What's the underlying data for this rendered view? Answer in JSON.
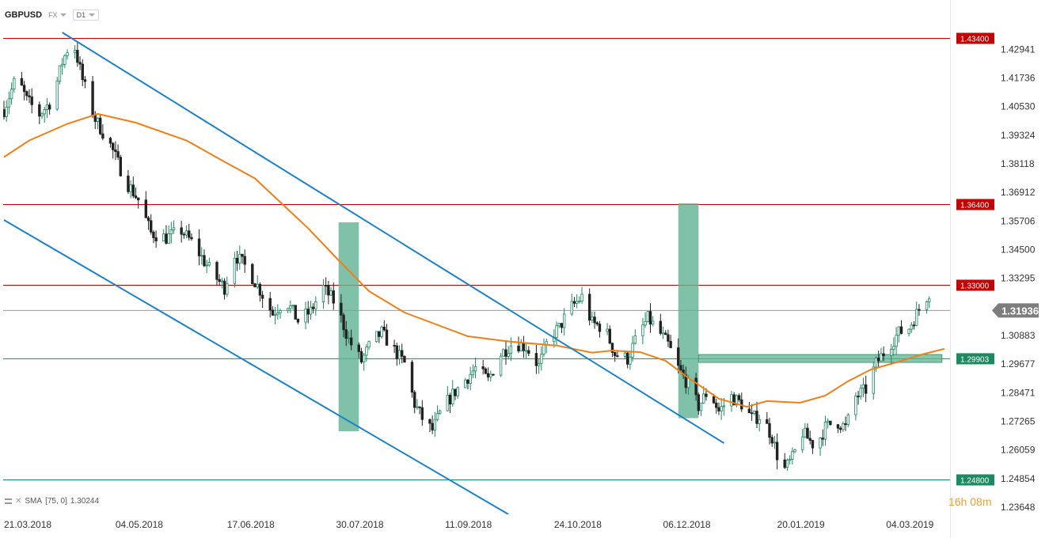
{
  "toolbar": {
    "symbol": "GBPUSD",
    "market": "FX",
    "timeframe": "D1"
  },
  "indicator": {
    "name": "SMA",
    "params": "[75, 0]",
    "value": "1.30244"
  },
  "timer": {
    "hours": "16",
    "h": "h",
    "minutes": "08",
    "m": "m"
  },
  "colors": {
    "up": "#1b8a60",
    "down": "#222222",
    "sma": "#f07f18",
    "channel": "#1b82c9",
    "resistance": "#c40000",
    "support": "#1b8a60",
    "zone": "#5fb394"
  },
  "chart_data": {
    "type": "candlestick",
    "instrument": "GBPUSD",
    "timeframe": "D1",
    "ylim": [
      1.2335,
      1.4385
    ],
    "y_ticks": [
      "1.42941",
      "1.41736",
      "1.40530",
      "1.39324",
      "1.38118",
      "1.36912",
      "1.35706",
      "1.34500",
      "1.33295",
      "1.30883",
      "1.29677",
      "1.28471",
      "1.27265",
      "1.26059",
      "1.24854",
      "1.23648"
    ],
    "x_ticks": [
      "21.03.2018",
      "04.05.2018",
      "17.06.2018",
      "30.07.2018",
      "11.09.2018",
      "24.10.2018",
      "06.12.2018",
      "20.01.2019",
      "04.03.2019"
    ],
    "x_tick_dates": [
      "2018-03-21",
      "2018-05-04",
      "2018-06-17",
      "2018-07-30",
      "2018-09-11",
      "2018-10-24",
      "2018-12-06",
      "2019-01-20",
      "2019-03-04"
    ],
    "price_tag": {
      "value": "1.31936",
      "level": 1.31936
    },
    "levels": [
      {
        "label": "1.43400",
        "value": 1.434,
        "kind": "resistance"
      },
      {
        "label": "1.36400",
        "value": 1.364,
        "kind": "resistance"
      },
      {
        "label": "1.33000",
        "value": 1.33,
        "kind": "resistance"
      },
      {
        "label": "1.29903",
        "value": 1.29903,
        "kind": "support"
      },
      {
        "label": "1.24800",
        "value": 1.248,
        "kind": "support"
      }
    ],
    "support_zone": {
      "from": "2018-12-20",
      "to": "2019-03-26",
      "low": 1.2975,
      "high": 1.3008
    },
    "boxes": [
      {
        "from": "2018-07-31",
        "to": "2018-08-08",
        "low": 1.2685,
        "high": 1.3565
      },
      {
        "from": "2018-12-12",
        "to": "2018-12-20",
        "low": 1.274,
        "high": 1.3645
      }
    ],
    "channel_lines": [
      {
        "points": [
          [
            "2018-04-13",
            1.4365
          ],
          [
            "2018-12-30",
            1.2635
          ]
        ]
      },
      {
        "points": [
          [
            "2018-03-21",
            1.3575
          ],
          [
            "2018-10-06",
            1.2335
          ]
        ]
      }
    ],
    "sma": {
      "name": "SMA",
      "period": 75,
      "points": [
        [
          "2018-03-21",
          1.384
        ],
        [
          "2018-03-31",
          1.391
        ],
        [
          "2018-04-15",
          1.398
        ],
        [
          "2018-04-27",
          1.4022
        ],
        [
          "2018-05-12",
          1.3985
        ],
        [
          "2018-06-01",
          1.391
        ],
        [
          "2018-06-16",
          1.382
        ],
        [
          "2018-06-28",
          1.375
        ],
        [
          "2018-07-08",
          1.365
        ],
        [
          "2018-07-19",
          1.354
        ],
        [
          "2018-07-31",
          1.3405
        ],
        [
          "2018-08-12",
          1.3275
        ],
        [
          "2018-08-26",
          1.3185
        ],
        [
          "2018-09-10",
          1.3125
        ],
        [
          "2018-09-20",
          1.3085
        ],
        [
          "2018-10-07",
          1.3062
        ],
        [
          "2018-10-25",
          1.3046
        ],
        [
          "2018-11-08",
          1.3016
        ],
        [
          "2018-11-16",
          1.3025
        ],
        [
          "2018-11-27",
          1.3018
        ],
        [
          "2018-12-07",
          1.2982
        ],
        [
          "2018-12-16",
          1.291
        ],
        [
          "2018-12-28",
          1.2822
        ],
        [
          "2019-01-08",
          1.2788
        ],
        [
          "2019-01-16",
          1.2812
        ],
        [
          "2019-01-29",
          1.2805
        ],
        [
          "2019-02-08",
          1.2835
        ],
        [
          "2019-02-17",
          1.2896
        ],
        [
          "2019-02-26",
          1.2945
        ],
        [
          "2019-03-08",
          1.2975
        ],
        [
          "2019-03-18",
          1.3008
        ],
        [
          "2019-03-27",
          1.3032
        ]
      ]
    },
    "price_path": [
      [
        "2018-03-21",
        1.404
      ],
      [
        "2018-03-26",
        1.418
      ],
      [
        "2018-03-30",
        1.408
      ],
      [
        "2018-04-04",
        1.402
      ],
      [
        "2018-04-09",
        1.408
      ],
      [
        "2018-04-13",
        1.424
      ],
      [
        "2018-04-17",
        1.4345
      ],
      [
        "2018-04-21",
        1.4165
      ],
      [
        "2018-04-26",
        1.4
      ],
      [
        "2018-05-02",
        1.389
      ],
      [
        "2018-05-08",
        1.374
      ],
      [
        "2018-05-13",
        1.366
      ],
      [
        "2018-05-18",
        1.352
      ],
      [
        "2018-05-24",
        1.35
      ],
      [
        "2018-05-30",
        1.353
      ],
      [
        "2018-06-04",
        1.347
      ],
      [
        "2018-06-08",
        1.34
      ],
      [
        "2018-06-12",
        1.334
      ],
      [
        "2018-06-16",
        1.329
      ],
      [
        "2018-06-20",
        1.343
      ],
      [
        "2018-06-25",
        1.337
      ],
      [
        "2018-06-30",
        1.328
      ],
      [
        "2018-07-05",
        1.318
      ],
      [
        "2018-07-10",
        1.324
      ],
      [
        "2018-07-15",
        1.315
      ],
      [
        "2018-07-20",
        1.319
      ],
      [
        "2018-07-25",
        1.329
      ],
      [
        "2018-07-30",
        1.322
      ],
      [
        "2018-08-04",
        1.307
      ],
      [
        "2018-08-09",
        1.298
      ],
      [
        "2018-08-13",
        1.306
      ],
      [
        "2018-08-17",
        1.31
      ],
      [
        "2018-08-21",
        1.304
      ],
      [
        "2018-08-26",
        1.297
      ],
      [
        "2018-08-30",
        1.28
      ],
      [
        "2018-09-03",
        1.272
      ],
      [
        "2018-09-06",
        1.269
      ],
      [
        "2018-09-10",
        1.278
      ],
      [
        "2018-09-14",
        1.284
      ],
      [
        "2018-09-18",
        1.289
      ],
      [
        "2018-09-23",
        1.295
      ],
      [
        "2018-09-28",
        1.29
      ],
      [
        "2018-10-03",
        1.301
      ],
      [
        "2018-10-08",
        1.306
      ],
      [
        "2018-10-13",
        1.304
      ],
      [
        "2018-10-18",
        1.296
      ],
      [
        "2018-10-22",
        1.308
      ],
      [
        "2018-10-26",
        1.312
      ],
      [
        "2018-10-30",
        1.32
      ],
      [
        "2018-11-04",
        1.325
      ],
      [
        "2018-11-08",
        1.314
      ],
      [
        "2018-11-13",
        1.312
      ],
      [
        "2018-11-17",
        1.301
      ],
      [
        "2018-11-22",
        1.299
      ],
      [
        "2018-11-26",
        1.309
      ],
      [
        "2018-11-30",
        1.316
      ],
      [
        "2018-12-04",
        1.311
      ],
      [
        "2018-12-08",
        1.305
      ],
      [
        "2018-12-12",
        1.295
      ],
      [
        "2018-12-16",
        1.288
      ],
      [
        "2018-12-20",
        1.279
      ],
      [
        "2018-12-24",
        1.286
      ],
      [
        "2018-12-28",
        1.277
      ],
      [
        "2019-01-02",
        1.283
      ],
      [
        "2019-01-06",
        1.28
      ],
      [
        "2019-01-10",
        1.274
      ],
      [
        "2019-01-14",
        1.275
      ],
      [
        "2019-01-18",
        1.266
      ],
      [
        "2019-01-22",
        1.251
      ],
      [
        "2019-01-26",
        1.257
      ],
      [
        "2019-01-30",
        1.268
      ],
      [
        "2019-02-04",
        1.262
      ],
      [
        "2019-02-08",
        1.27
      ],
      [
        "2019-02-12",
        1.273
      ],
      [
        "2019-02-16",
        1.27
      ],
      [
        "2019-02-20",
        1.283
      ],
      [
        "2019-02-24",
        1.286
      ],
      [
        "2019-02-28",
        1.297
      ],
      [
        "2019-03-04",
        1.303
      ],
      [
        "2019-03-09",
        1.31
      ],
      [
        "2019-03-13",
        1.312
      ],
      [
        "2019-03-17",
        1.32
      ],
      [
        "2019-03-21",
        1.327
      ]
    ]
  }
}
